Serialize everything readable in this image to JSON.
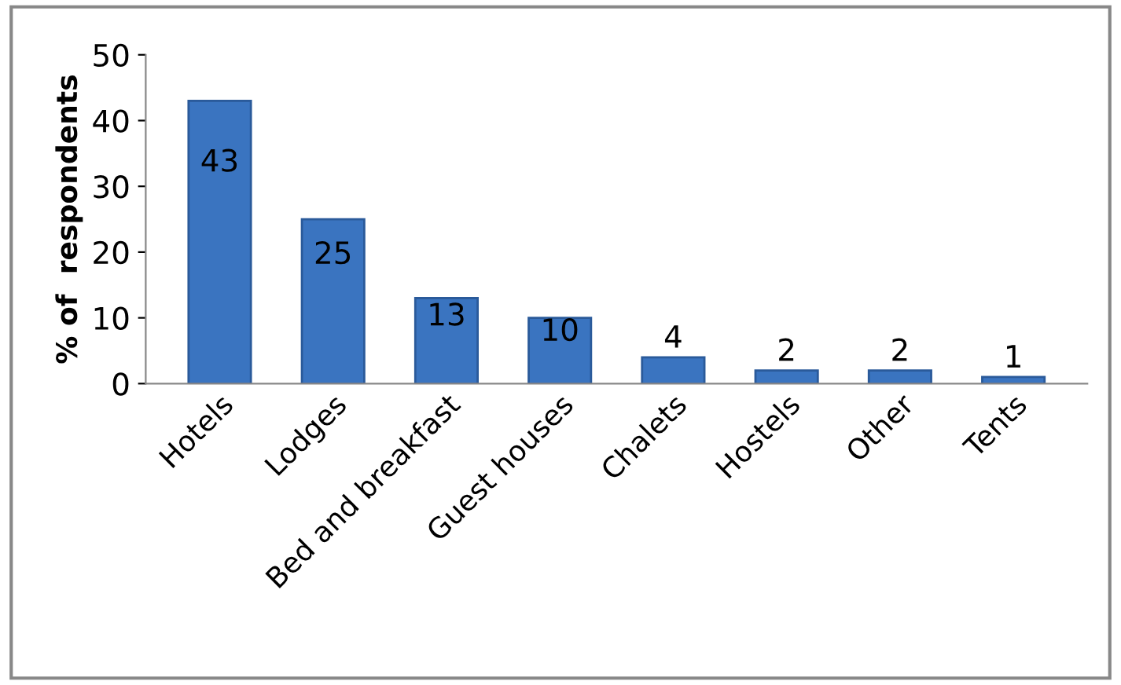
{
  "chart_data": {
    "type": "bar",
    "ylabel": "% of  respondents",
    "categories": [
      "Hotels",
      "Lodges",
      "Bed and breakfast",
      "Guest houses",
      "Chalets",
      "Hostels",
      "Other",
      "Tents"
    ],
    "values": [
      43,
      25,
      13,
      10,
      4,
      2,
      2,
      1
    ],
    "color": "#3a74c0",
    "ylim": [
      0,
      50
    ],
    "yticks": [
      0,
      10,
      20,
      30,
      40,
      50
    ],
    "grid": false,
    "data_labels": true
  }
}
